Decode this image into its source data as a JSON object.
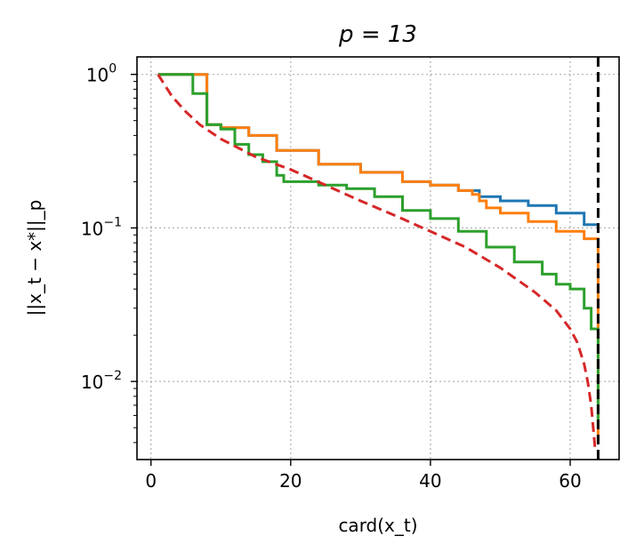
{
  "chart_data": {
    "type": "line",
    "title": "p = 13",
    "xlabel": "card(x_t)",
    "ylabel": "||x_t − x*||_p",
    "xlim": [
      -2,
      67
    ],
    "ylim": [
      0.0031,
      1.3
    ],
    "yscale": "log",
    "grid": true,
    "x_ticks": [
      0,
      20,
      40,
      60
    ],
    "y_ticks": [
      {
        "value": 1.0,
        "base": "10",
        "exp": "0"
      },
      {
        "value": 0.1,
        "base": "10",
        "exp": "−1"
      },
      {
        "value": 0.01,
        "base": "10",
        "exp": "−2"
      }
    ],
    "vline": {
      "x": 64,
      "color": "#000000",
      "style": "dashed"
    },
    "series": [
      {
        "color": "#1f77b4",
        "style": "solid",
        "x": [
          1,
          8,
          10,
          14,
          18,
          24,
          30,
          36,
          40,
          44,
          47,
          50,
          54,
          58,
          62,
          64
        ],
        "y": [
          1.0,
          0.47,
          0.45,
          0.4,
          0.32,
          0.26,
          0.23,
          0.2,
          0.19,
          0.175,
          0.16,
          0.15,
          0.14,
          0.125,
          0.105,
          0.1
        ]
      },
      {
        "color": "#ff7f0e",
        "style": "solid",
        "x": [
          1,
          8,
          10,
          14,
          18,
          24,
          30,
          36,
          40,
          44,
          46,
          47,
          48,
          50,
          54,
          58,
          62,
          64,
          64,
          64,
          64,
          64
        ],
        "y": [
          1.0,
          0.47,
          0.45,
          0.4,
          0.32,
          0.26,
          0.23,
          0.2,
          0.19,
          0.175,
          0.165,
          0.15,
          0.135,
          0.125,
          0.11,
          0.095,
          0.085,
          0.078,
          0.02,
          0.01,
          0.006,
          0.004
        ]
      },
      {
        "color": "#2ca02c",
        "style": "solid",
        "x": [
          1,
          6,
          8,
          10,
          12,
          14,
          16,
          18,
          19,
          24,
          28,
          32,
          36,
          40,
          44,
          48,
          52,
          56,
          58,
          60,
          62,
          63,
          64,
          64,
          64
        ],
        "y": [
          1.0,
          0.75,
          0.47,
          0.44,
          0.35,
          0.3,
          0.27,
          0.22,
          0.2,
          0.19,
          0.18,
          0.16,
          0.13,
          0.115,
          0.095,
          0.075,
          0.06,
          0.05,
          0.043,
          0.04,
          0.03,
          0.022,
          0.012,
          0.007,
          0.005
        ]
      },
      {
        "color": "#d62728",
        "style": "dashed",
        "x": [
          1,
          3,
          5,
          7,
          10,
          15,
          20,
          25,
          30,
          35,
          40,
          45,
          50,
          55,
          58,
          60,
          61,
          62,
          62.5,
          63,
          63.3,
          63.6
        ],
        "y": [
          1.0,
          0.72,
          0.57,
          0.47,
          0.38,
          0.29,
          0.24,
          0.19,
          0.15,
          0.12,
          0.095,
          0.075,
          0.055,
          0.038,
          0.029,
          0.022,
          0.018,
          0.013,
          0.01,
          0.007,
          0.005,
          0.0035
        ]
      }
    ]
  }
}
